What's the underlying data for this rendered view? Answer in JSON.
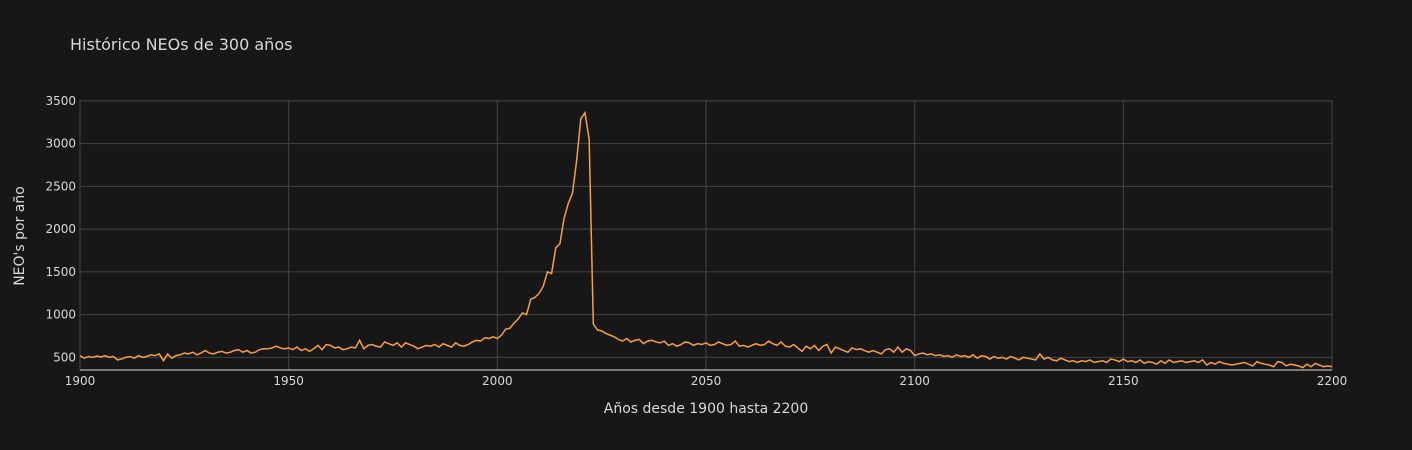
{
  "chart_data": {
    "type": "line",
    "title": "Histórico NEOs de 300 años",
    "x_label": "Años desde 1900 hasta 2200",
    "y_label": "NEO's por año",
    "color": "#f7a041",
    "grid": true,
    "xlim": [
      1900,
      2200
    ],
    "ylim": [
      352,
      3510
    ],
    "xticks": [
      1900,
      1950,
      2000,
      2050,
      2100,
      2150,
      2200
    ],
    "yticks": [
      500,
      1000,
      1500,
      2000,
      2500,
      3000,
      3500
    ],
    "x": [
      1900,
      1901,
      1902,
      1903,
      1904,
      1905,
      1906,
      1907,
      1908,
      1909,
      1910,
      1911,
      1912,
      1913,
      1914,
      1915,
      1916,
      1917,
      1918,
      1919,
      1920,
      1921,
      1922,
      1923,
      1924,
      1925,
      1926,
      1927,
      1928,
      1929,
      1930,
      1931,
      1932,
      1933,
      1934,
      1935,
      1936,
      1937,
      1938,
      1939,
      1940,
      1941,
      1942,
      1943,
      1944,
      1945,
      1946,
      1947,
      1948,
      1949,
      1950,
      1951,
      1952,
      1953,
      1954,
      1955,
      1956,
      1957,
      1958,
      1959,
      1960,
      1961,
      1962,
      1963,
      1964,
      1965,
      1966,
      1967,
      1968,
      1969,
      1970,
      1971,
      1972,
      1973,
      1974,
      1975,
      1976,
      1977,
      1978,
      1979,
      1980,
      1981,
      1982,
      1983,
      1984,
      1985,
      1986,
      1987,
      1988,
      1989,
      1990,
      1991,
      1992,
      1993,
      1994,
      1995,
      1996,
      1997,
      1998,
      1999,
      2000,
      2001,
      2002,
      2003,
      2004,
      2005,
      2006,
      2007,
      2008,
      2009,
      2010,
      2011,
      2012,
      2013,
      2014,
      2015,
      2016,
      2017,
      2018,
      2019,
      2020,
      2021,
      2022,
      2023,
      2024,
      2025,
      2026,
      2027,
      2028,
      2029,
      2030,
      2031,
      2032,
      2033,
      2034,
      2035,
      2036,
      2037,
      2038,
      2039,
      2040,
      2041,
      2042,
      2043,
      2044,
      2045,
      2046,
      2047,
      2048,
      2049,
      2050,
      2051,
      2052,
      2053,
      2054,
      2055,
      2056,
      2057,
      2058,
      2059,
      2060,
      2061,
      2062,
      2063,
      2064,
      2065,
      2066,
      2067,
      2068,
      2069,
      2070,
      2071,
      2072,
      2073,
      2074,
      2075,
      2076,
      2077,
      2078,
      2079,
      2080,
      2081,
      2082,
      2083,
      2084,
      2085,
      2086,
      2087,
      2088,
      2089,
      2090,
      2091,
      2092,
      2093,
      2094,
      2095,
      2096,
      2097,
      2098,
      2099,
      2100,
      2101,
      2102,
      2103,
      2104,
      2105,
      2106,
      2107,
      2108,
      2109,
      2110,
      2111,
      2112,
      2113,
      2114,
      2115,
      2116,
      2117,
      2118,
      2119,
      2120,
      2121,
      2122,
      2123,
      2124,
      2125,
      2126,
      2127,
      2128,
      2129,
      2130,
      2131,
      2132,
      2133,
      2134,
      2135,
      2136,
      2137,
      2138,
      2139,
      2140,
      2141,
      2142,
      2143,
      2144,
      2145,
      2146,
      2147,
      2148,
      2149,
      2150,
      2151,
      2152,
      2153,
      2154,
      2155,
      2156,
      2157,
      2158,
      2159,
      2160,
      2161,
      2162,
      2163,
      2164,
      2165,
      2166,
      2167,
      2168,
      2169,
      2170,
      2171,
      2172,
      2173,
      2174,
      2175,
      2176,
      2177,
      2178,
      2179,
      2180,
      2181,
      2182,
      2183,
      2184,
      2185,
      2186,
      2187,
      2188,
      2189,
      2190,
      2191,
      2192,
      2193,
      2194,
      2195,
      2196,
      2197,
      2198,
      2199,
      2200
    ],
    "values": [
      520,
      490,
      510,
      500,
      515,
      505,
      520,
      500,
      510,
      470,
      480,
      500,
      510,
      490,
      520,
      500,
      510,
      530,
      520,
      540,
      460,
      540,
      490,
      520,
      530,
      550,
      540,
      560,
      530,
      550,
      580,
      550,
      540,
      560,
      570,
      550,
      560,
      580,
      590,
      560,
      580,
      550,
      560,
      590,
      600,
      600,
      610,
      630,
      610,
      600,
      610,
      590,
      620,
      580,
      600,
      570,
      600,
      640,
      590,
      650,
      640,
      610,
      620,
      590,
      600,
      620,
      610,
      700,
      600,
      640,
      650,
      630,
      620,
      680,
      660,
      640,
      670,
      620,
      670,
      650,
      630,
      600,
      620,
      640,
      630,
      650,
      620,
      660,
      640,
      620,
      670,
      640,
      630,
      650,
      680,
      700,
      690,
      730,
      720,
      740,
      720,
      760,
      830,
      840,
      900,
      950,
      1020,
      1000,
      1180,
      1200,
      1250,
      1330,
      1500,
      1480,
      1780,
      1830,
      2130,
      2300,
      2420,
      2800,
      3290,
      3360,
      3050,
      890,
      820,
      810,
      780,
      760,
      740,
      710,
      690,
      720,
      680,
      700,
      710,
      660,
      690,
      700,
      680,
      670,
      690,
      640,
      660,
      630,
      650,
      680,
      670,
      640,
      660,
      650,
      670,
      640,
      650,
      680,
      660,
      640,
      650,
      690,
      630,
      640,
      620,
      640,
      660,
      640,
      650,
      690,
      660,
      640,
      680,
      630,
      620,
      650,
      610,
      570,
      630,
      600,
      640,
      580,
      630,
      650,
      550,
      620,
      600,
      580,
      560,
      610,
      590,
      600,
      580,
      560,
      580,
      560,
      540,
      590,
      600,
      560,
      620,
      560,
      600,
      580,
      520,
      540,
      550,
      530,
      540,
      520,
      530,
      510,
      520,
      500,
      530,
      510,
      520,
      500,
      530,
      490,
      520,
      510,
      480,
      510,
      490,
      500,
      480,
      510,
      490,
      470,
      500,
      490,
      480,
      470,
      540,
      480,
      500,
      470,
      460,
      490,
      470,
      450,
      460,
      440,
      460,
      450,
      470,
      440,
      450,
      460,
      440,
      480,
      470,
      450,
      480,
      450,
      460,
      440,
      470,
      430,
      450,
      440,
      420,
      460,
      430,
      470,
      440,
      450,
      460,
      440,
      450,
      460,
      440,
      470,
      410,
      440,
      420,
      450,
      430,
      420,
      410,
      420,
      430,
      440,
      420,
      400,
      450,
      430,
      420,
      410,
      390,
      450,
      440,
      400,
      420,
      410,
      400,
      380,
      420,
      390,
      430,
      410,
      390,
      400,
      390
    ]
  }
}
